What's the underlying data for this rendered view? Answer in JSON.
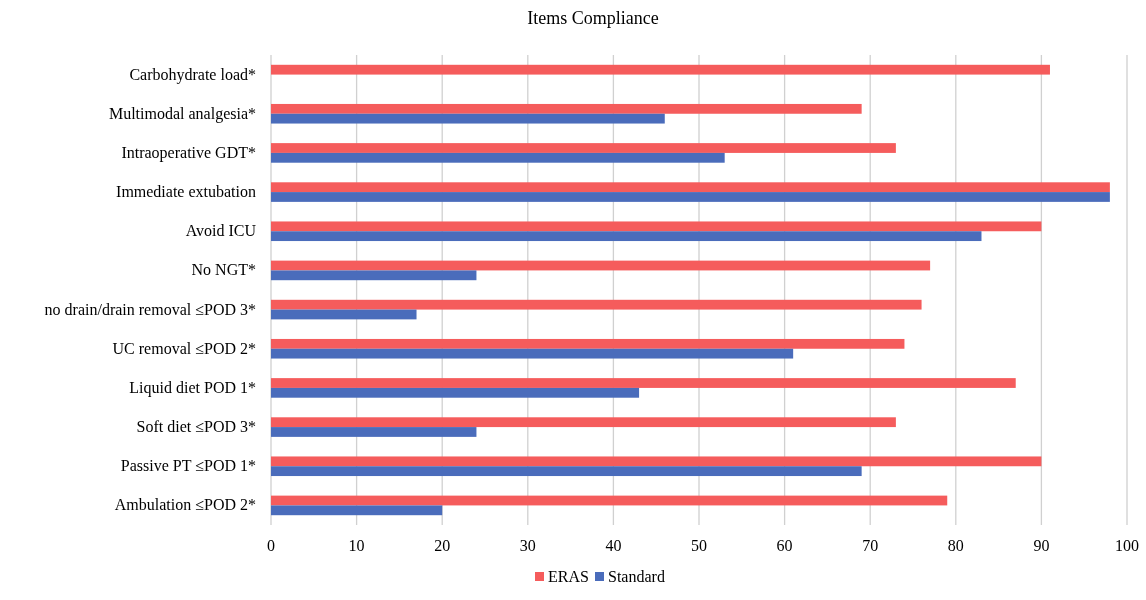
{
  "chart_data": {
    "type": "bar",
    "orientation": "horizontal",
    "title": "Items Compliance",
    "categories": [
      "Carbohydrate load*",
      "Multimodal analgesia*",
      "Intraoperative GDT*",
      "Immediate extubation",
      "Avoid ICU",
      "No NGT*",
      "no drain/drain removal ≤POD 3*",
      "UC removal ≤POD 2*",
      "Liquid diet POD 1*",
      "Soft diet ≤POD 3*",
      "Passive PT ≤POD 1*",
      "Ambulation ≤POD 2*"
    ],
    "series": [
      {
        "name": "ERAS",
        "color": "#f55c5c",
        "values": [
          91,
          69,
          73,
          98,
          90,
          77,
          76,
          74,
          87,
          73,
          90,
          79
        ]
      },
      {
        "name": "Standard",
        "color": "#4a6cbb",
        "values": [
          null,
          46,
          53,
          98,
          83,
          24,
          17,
          61,
          43,
          24,
          69,
          20
        ]
      }
    ],
    "xlim": [
      0,
      100
    ],
    "xticks": [
      0,
      10,
      20,
      30,
      40,
      50,
      60,
      70,
      80,
      90,
      100
    ],
    "grid": "x",
    "legend": "bottom"
  }
}
